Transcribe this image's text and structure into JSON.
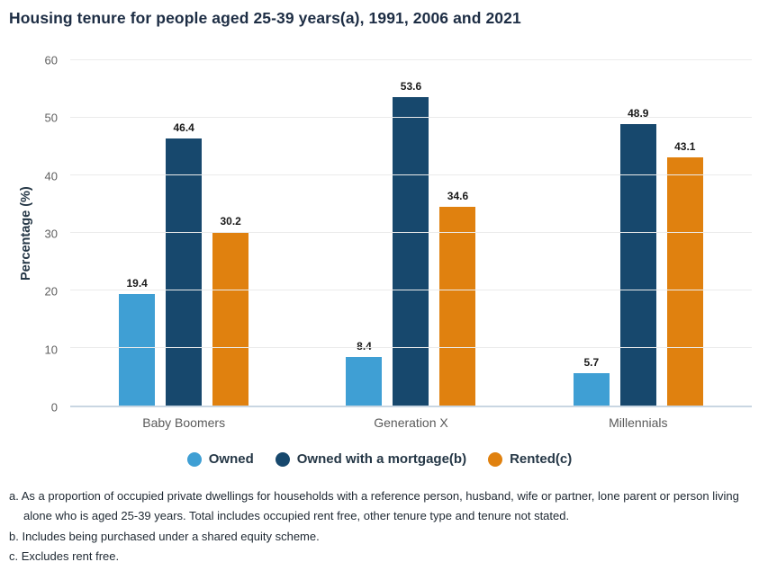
{
  "title": "Housing tenure for people aged 25-39 years(a), 1991, 2006 and 2021",
  "chart_data": {
    "type": "bar",
    "title": "Housing tenure for people aged 25-39 years(a), 1991, 2006 and 2021",
    "categories": [
      "Baby Boomers",
      "Generation X",
      "Millennials"
    ],
    "series": [
      {
        "name": "Owned",
        "color": "#3F9FD4",
        "values": [
          19.4,
          8.4,
          5.7
        ]
      },
      {
        "name": "Owned with a mortgage(b)",
        "color": "#17486D",
        "values": [
          46.4,
          53.6,
          48.9
        ]
      },
      {
        "name": "Rented(c)",
        "color": "#E0810F",
        "values": [
          30.2,
          34.6,
          43.1
        ]
      }
    ],
    "xlabel": "",
    "ylabel": "Percentage (%)",
    "ylim": [
      0,
      60
    ],
    "yticks": [
      0,
      10,
      20,
      30,
      40,
      50,
      60
    ],
    "grid": true,
    "legend_position": "bottom",
    "data_labels": true
  },
  "footnotes": [
    "a. As a proportion of occupied private dwellings for households with a reference person, husband, wife or partner, lone parent or person living alone who is aged 25-39 years. Total includes occupied rent free, other tenure type and tenure not stated.",
    "b. Includes being purchased under a shared equity scheme.",
    "c. Excludes rent free."
  ]
}
